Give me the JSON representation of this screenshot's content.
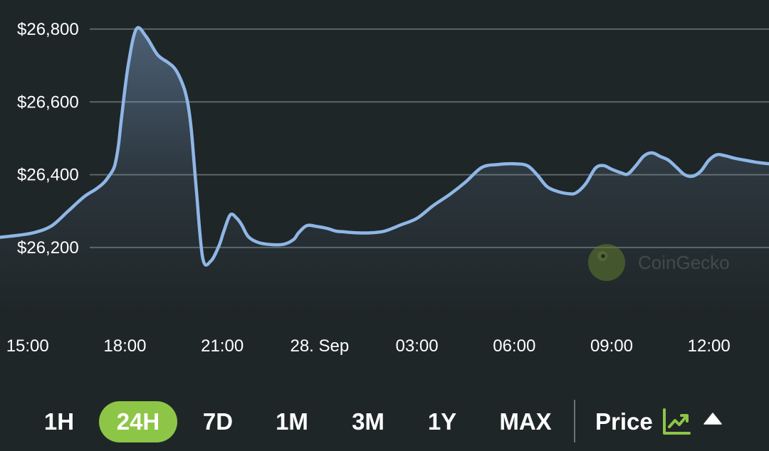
{
  "chart_data": {
    "type": "area",
    "y_tick_labels": [
      "$26,800",
      "$26,600",
      "$26,400",
      "$26,200"
    ],
    "y_ticks": [
      26800,
      26600,
      26400,
      26200
    ],
    "ylim": [
      26020,
      26880
    ],
    "x_tick_labels": [
      "15:00",
      "18:00",
      "21:00",
      "28. Sep",
      "03:00",
      "06:00",
      "09:00",
      "12:00"
    ],
    "x_ticks": [
      -5,
      1,
      7,
      13,
      19,
      25,
      31,
      37
    ],
    "xlim": [
      -6.7,
      40.7
    ],
    "grid": true,
    "series": [
      {
        "line_color": "#8fb6e6",
        "x": [
          -6.7,
          -5.5,
          -4.5,
          -3.5,
          -2.5,
          -1.5,
          -0.8,
          -0.3,
          0.0,
          0.25,
          0.4,
          0.6,
          0.8,
          1.2,
          1.7,
          2.3,
          3.0,
          3.6,
          3.9,
          4.1,
          4.3,
          4.5,
          4.7,
          4.9,
          5.1,
          5.4,
          5.8,
          6.3,
          6.8,
          7.1,
          7.5,
          7.9,
          8.2,
          8.6,
          9.2,
          10.0,
          10.8,
          11.4,
          11.7,
          12.2,
          12.8,
          13.5,
          14.0,
          14.5,
          15.0,
          16.0,
          17.0,
          18.0,
          19.0,
          20.0,
          21.0,
          22.0,
          23.0,
          24.0,
          25.0,
          25.8,
          26.4,
          27.0,
          27.6,
          28.3,
          28.8,
          29.4,
          30.0,
          30.5,
          31.0,
          31.6,
          32.0,
          32.5,
          33.0,
          33.5,
          34.0,
          34.5,
          35.0,
          35.5,
          36.0,
          36.5,
          37.0,
          37.5,
          38.0,
          38.6,
          39.2,
          39.8,
          40.3,
          40.7
        ],
        "values": [
          26228,
          26234,
          26242,
          26260,
          26300,
          26340,
          26360,
          26378,
          26395,
          26412,
          26430,
          26480,
          26560,
          26700,
          26800,
          26780,
          26730,
          26710,
          26700,
          26690,
          26675,
          26655,
          26630,
          26590,
          26520,
          26360,
          26170,
          26163,
          26205,
          26245,
          26290,
          26280,
          26262,
          26230,
          26214,
          26208,
          26209,
          26222,
          26240,
          26260,
          26258,
          26252,
          26245,
          26243,
          26241,
          26240,
          26245,
          26262,
          26280,
          26315,
          26345,
          26380,
          26420,
          26428,
          26430,
          26425,
          26400,
          26368,
          26355,
          26348,
          26350,
          26375,
          26418,
          26425,
          26415,
          26405,
          26402,
          26425,
          26452,
          26460,
          26450,
          26440,
          26420,
          26400,
          26396,
          26410,
          26440,
          26455,
          26452,
          26445,
          26440,
          26435,
          26432,
          26430
        ]
      }
    ]
  },
  "watermark": {
    "text": "CoinGecko"
  },
  "range_tabs": [
    {
      "label": "1H",
      "active": false
    },
    {
      "label": "24H",
      "active": true
    },
    {
      "label": "7D",
      "active": false
    },
    {
      "label": "1M",
      "active": false
    },
    {
      "label": "3M",
      "active": false
    },
    {
      "label": "1Y",
      "active": false
    },
    {
      "label": "MAX",
      "active": false
    }
  ],
  "metric_selector": {
    "label": "Price",
    "icon": "line-chart-icon"
  },
  "colors": {
    "background": "#1f2628",
    "accent": "#8dc647",
    "line": "#8fb6e6"
  }
}
